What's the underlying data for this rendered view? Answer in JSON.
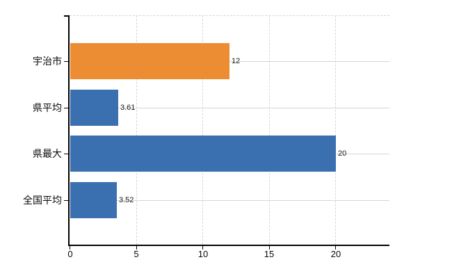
{
  "chart_data": {
    "type": "bar",
    "orientation": "horizontal",
    "title": "",
    "categories": [
      "宇治市",
      "県平均",
      "県最大",
      "全国平均"
    ],
    "values": [
      12,
      3.61,
      20,
      3.52
    ],
    "value_labels": [
      "12",
      "3.61",
      "20",
      "3.52"
    ],
    "bar_colors": [
      "#ED8D33",
      "#3A6FB0",
      "#3A6FB0",
      "#3A6FB0"
    ],
    "highlight_color": "#ED8D33",
    "default_color": "#3A6FB0",
    "x_ticks": [
      "0",
      "5",
      "10",
      "15",
      "20"
    ],
    "xlim": [
      0,
      24
    ],
    "grid": true,
    "legend_position": "none",
    "xlabel": "",
    "ylabel": ""
  },
  "colors": {
    "axis": "#000000",
    "grid_vertical": "#d7d3d5",
    "grid_horizontal": "#d2d6cf",
    "background": "#ffffff",
    "text": "#0a0a0a"
  }
}
